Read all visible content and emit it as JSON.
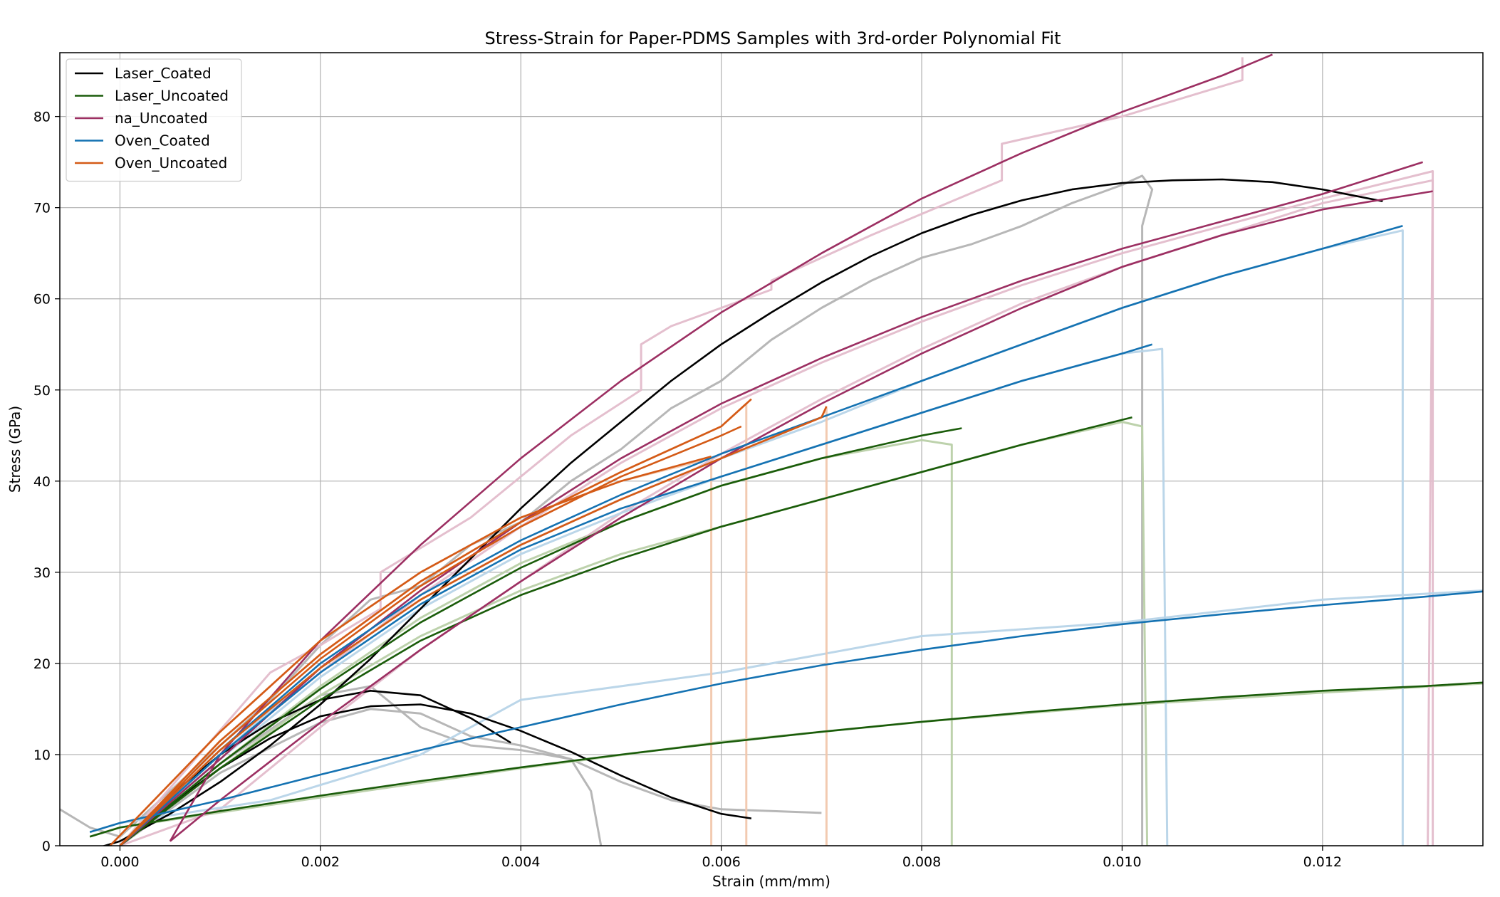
{
  "chart_data": {
    "type": "line",
    "title": "Stress-Strain for Paper-PDMS Samples with 3rd-order Polynomial Fit",
    "xlabel": "Strain (mm/mm)",
    "ylabel": "Stress (GPa)",
    "xlim": [
      -0.0006,
      0.0136
    ],
    "ylim": [
      0,
      87
    ],
    "x_ticks": [
      0.0,
      0.002,
      0.004,
      0.006,
      0.008,
      0.01,
      0.012
    ],
    "x_tick_labels": [
      "0.000",
      "0.002",
      "0.004",
      "0.006",
      "0.008",
      "0.010",
      "0.012"
    ],
    "y_ticks": [
      0,
      10,
      20,
      30,
      40,
      50,
      60,
      70,
      80
    ],
    "y_tick_labels": [
      "0",
      "10",
      "20",
      "30",
      "40",
      "50",
      "60",
      "70",
      "80"
    ],
    "grid": true,
    "legend_position": "top-left",
    "colors": {
      "Laser_Coated": "#000000",
      "Laser_Uncoated": "#1a5c0a",
      "na_Uncoated": "#9c2f62",
      "Oven_Coated": "#1472b2",
      "Oven_Uncoated": "#d45a16",
      "raw_Laser_Coated": "#b3b3b3",
      "raw_Laser_Uncoated": "#b9d0a8",
      "raw_na_Uncoated": "#e3bccb",
      "raw_Oven_Coated": "#b7d4e8",
      "raw_Oven_Uncoated": "#f1c7ad"
    },
    "legend": [
      "Laser_Coated",
      "Laser_Uncoated",
      "na_Uncoated",
      "Oven_Coated",
      "Oven_Uncoated"
    ],
    "series": [
      {
        "group": "Laser_Coated",
        "x": [
          -0.0003,
          0.0,
          0.0005,
          0.001,
          0.0015,
          0.002,
          0.0025,
          0.003,
          0.0035,
          0.004,
          0.0045,
          0.005,
          0.0055,
          0.006,
          0.0065,
          0.007,
          0.0075,
          0.008,
          0.0085,
          0.009,
          0.0095,
          0.01,
          0.0105,
          0.011,
          0.0115,
          0.012,
          0.0126
        ],
        "y": [
          -0.5,
          0.5,
          3.5,
          7.0,
          11.0,
          15.5,
          20.5,
          26.0,
          31.5,
          37.0,
          42.0,
          46.5,
          51.0,
          55.0,
          58.5,
          61.8,
          64.7,
          67.2,
          69.2,
          70.8,
          72.0,
          72.7,
          73.0,
          73.1,
          72.8,
          72.0,
          70.7
        ]
      },
      {
        "group": "Laser_Coated",
        "x": [
          0.0,
          0.0005,
          0.001,
          0.0015,
          0.002,
          0.0025,
          0.003,
          0.0035,
          0.0039
        ],
        "y": [
          0.0,
          5.5,
          10.0,
          13.5,
          16.0,
          17.0,
          16.5,
          14.0,
          11.3
        ]
      },
      {
        "group": "Laser_Coated",
        "x": [
          0.0,
          0.0005,
          0.001,
          0.0015,
          0.002,
          0.0025,
          0.003,
          0.0035,
          0.004,
          0.0045,
          0.005,
          0.0055,
          0.006,
          0.0063
        ],
        "y": [
          0.0,
          4.5,
          8.5,
          11.8,
          14.2,
          15.3,
          15.5,
          14.5,
          12.6,
          10.3,
          7.7,
          5.3,
          3.5,
          3.0
        ]
      },
      {
        "group": "Laser_Uncoated",
        "x": [
          0.0,
          0.001,
          0.002,
          0.003,
          0.004,
          0.005,
          0.006,
          0.007,
          0.008,
          0.0084
        ],
        "y": [
          0.0,
          9.0,
          17.2,
          24.5,
          30.5,
          35.5,
          39.5,
          42.5,
          45.0,
          45.8
        ]
      },
      {
        "group": "Laser_Uncoated",
        "x": [
          0.0,
          0.001,
          0.002,
          0.003,
          0.004,
          0.005,
          0.006,
          0.007,
          0.008,
          0.009,
          0.0101
        ],
        "y": [
          0.0,
          8.5,
          16.0,
          22.5,
          27.5,
          31.5,
          35.0,
          38.0,
          41.0,
          44.0,
          47.0
        ]
      },
      {
        "group": "Laser_Uncoated",
        "x": [
          -0.0003,
          0.0,
          0.001,
          0.002,
          0.003,
          0.004,
          0.005,
          0.006,
          0.007,
          0.008,
          0.009,
          0.01,
          0.011,
          0.012,
          0.013,
          0.0136
        ],
        "y": [
          1.0,
          2.0,
          3.8,
          5.5,
          7.1,
          8.6,
          10.0,
          11.3,
          12.5,
          13.6,
          14.6,
          15.5,
          16.3,
          17.0,
          17.5,
          17.9
        ]
      },
      {
        "group": "na_Uncoated",
        "x": [
          0.0005,
          0.001,
          0.002,
          0.003,
          0.004,
          0.005,
          0.006,
          0.007,
          0.008,
          0.009,
          0.01,
          0.011,
          0.0115
        ],
        "y": [
          0.5,
          10.0,
          22.5,
          33.0,
          42.5,
          51.0,
          58.5,
          65.0,
          71.0,
          76.0,
          80.5,
          84.5,
          86.8
        ]
      },
      {
        "group": "na_Uncoated",
        "x": [
          0.0,
          0.001,
          0.002,
          0.003,
          0.004,
          0.005,
          0.006,
          0.007,
          0.008,
          0.009,
          0.01,
          0.011,
          0.012,
          0.013
        ],
        "y": [
          0.0,
          9.5,
          19.5,
          28.0,
          35.5,
          42.5,
          48.5,
          53.5,
          58.0,
          62.0,
          65.5,
          68.5,
          71.5,
          75.0
        ]
      },
      {
        "group": "na_Uncoated",
        "x": [
          0.0005,
          0.001,
          0.002,
          0.003,
          0.004,
          0.005,
          0.006,
          0.007,
          0.008,
          0.009,
          0.01,
          0.011,
          0.012,
          0.0131
        ],
        "y": [
          0.5,
          5.0,
          13.5,
          21.5,
          29.0,
          36.0,
          42.5,
          48.5,
          54.0,
          59.0,
          63.5,
          67.0,
          69.8,
          71.8
        ]
      },
      {
        "group": "Oven_Coated",
        "x": [
          0.0,
          0.001,
          0.002,
          0.003,
          0.004,
          0.005,
          0.006,
          0.007,
          0.008,
          0.009,
          0.01,
          0.011,
          0.012,
          0.0128
        ],
        "y": [
          0.0,
          10.5,
          20.0,
          27.5,
          33.5,
          38.5,
          43.0,
          47.0,
          51.0,
          55.0,
          59.0,
          62.5,
          65.5,
          68.0
        ]
      },
      {
        "group": "Oven_Coated",
        "x": [
          0.0,
          0.001,
          0.002,
          0.003,
          0.004,
          0.005,
          0.006,
          0.007,
          0.008,
          0.009,
          0.01,
          0.0103
        ],
        "y": [
          0.0,
          10.0,
          19.0,
          26.5,
          32.5,
          37.0,
          40.5,
          44.0,
          47.5,
          51.0,
          54.0,
          55.0
        ]
      },
      {
        "group": "Oven_Coated",
        "x": [
          -0.0003,
          0.0,
          0.001,
          0.002,
          0.003,
          0.004,
          0.005,
          0.006,
          0.007,
          0.008,
          0.009,
          0.01,
          0.011,
          0.012,
          0.013,
          0.0136
        ],
        "y": [
          1.5,
          2.5,
          5.0,
          7.8,
          10.5,
          13.0,
          15.5,
          17.8,
          19.8,
          21.5,
          23.0,
          24.3,
          25.4,
          26.4,
          27.3,
          27.9
        ]
      },
      {
        "group": "Oven_Uncoated",
        "x": [
          0.0,
          0.001,
          0.002,
          0.003,
          0.004,
          0.005,
          0.006,
          0.0063
        ],
        "y": [
          0.0,
          11.5,
          21.0,
          29.0,
          35.5,
          41.0,
          46.0,
          49.0
        ]
      },
      {
        "group": "Oven_Uncoated",
        "x": [
          0.0,
          0.001,
          0.002,
          0.003,
          0.004,
          0.005,
          0.006,
          0.007,
          0.00705
        ],
        "y": [
          0.0,
          10.5,
          19.5,
          27.0,
          33.0,
          38.0,
          42.5,
          47.0,
          48.2
        ]
      },
      {
        "group": "Oven_Uncoated",
        "x": [
          -0.0001,
          0.001,
          0.002,
          0.003,
          0.004,
          0.005,
          0.0059
        ],
        "y": [
          0.0,
          12.5,
          22.5,
          30.0,
          36.0,
          40.0,
          42.7
        ]
      },
      {
        "group": "Oven_Uncoated",
        "x": [
          0.0,
          0.001,
          0.002,
          0.003,
          0.004,
          0.005,
          0.006,
          0.0062
        ],
        "y": [
          0.0,
          11.0,
          20.5,
          28.5,
          35.0,
          40.5,
          45.0,
          46.0
        ]
      }
    ],
    "raw_series": [
      {
        "group": "raw_Laser_Coated",
        "x": [
          -0.0006,
          -0.0003,
          0.0,
          0.0005,
          0.001,
          0.0015,
          0.002,
          0.0025,
          0.003,
          0.0035,
          0.004,
          0.0045,
          0.005,
          0.0055,
          0.006,
          0.0065,
          0.007,
          0.0075,
          0.008,
          0.0085,
          0.009,
          0.0095,
          0.01,
          0.0102,
          0.0103,
          0.0102,
          0.0102
        ],
        "y": [
          4.0,
          2.0,
          1.0,
          6.0,
          11.0,
          16.0,
          22.0,
          27.0,
          28.5,
          33.0,
          35.5,
          40.0,
          43.5,
          48.0,
          51.0,
          55.5,
          59.0,
          62.0,
          64.5,
          66.0,
          68.0,
          70.5,
          72.5,
          73.5,
          72.0,
          68.0,
          0.0
        ]
      },
      {
        "group": "raw_Laser_Coated",
        "x": [
          0.0,
          0.001,
          0.002,
          0.0025,
          0.003,
          0.0035,
          0.004,
          0.0045,
          0.0047,
          0.0048
        ],
        "y": [
          0.0,
          9.0,
          16.5,
          17.5,
          13.0,
          11.0,
          10.5,
          9.5,
          6.0,
          0.0
        ]
      },
      {
        "group": "raw_Laser_Coated",
        "x": [
          0.0,
          0.001,
          0.002,
          0.0025,
          0.003,
          0.0035,
          0.004,
          0.0045,
          0.005,
          0.0055,
          0.006,
          0.0065,
          0.007
        ],
        "y": [
          0.0,
          8.0,
          13.5,
          15.0,
          14.5,
          12.0,
          11.0,
          9.5,
          7.0,
          5.0,
          4.0,
          3.8,
          3.6
        ]
      },
      {
        "group": "raw_Laser_Uncoated",
        "x": [
          0.0,
          0.001,
          0.002,
          0.003,
          0.004,
          0.005,
          0.006,
          0.007,
          0.008,
          0.0083,
          0.0083
        ],
        "y": [
          0.0,
          9.0,
          17.5,
          25.0,
          31.0,
          35.5,
          39.5,
          42.5,
          44.5,
          44.0,
          0.0
        ]
      },
      {
        "group": "raw_Laser_Uncoated",
        "x": [
          0.0,
          0.001,
          0.002,
          0.003,
          0.004,
          0.005,
          0.006,
          0.007,
          0.008,
          0.009,
          0.01,
          0.0102,
          0.01025
        ],
        "y": [
          0.0,
          8.5,
          16.5,
          23.0,
          28.0,
          32.0,
          35.0,
          38.0,
          41.0,
          44.0,
          46.5,
          46.0,
          0.0
        ]
      },
      {
        "group": "raw_Laser_Uncoated",
        "x": [
          -0.0003,
          0.0,
          0.002,
          0.004,
          0.006,
          0.008,
          0.01,
          0.012,
          0.0136
        ],
        "y": [
          1.0,
          2.0,
          5.3,
          8.5,
          11.4,
          13.6,
          15.4,
          16.8,
          17.8
        ]
      },
      {
        "group": "raw_na_Uncoated",
        "x": [
          0.0,
          0.0015,
          0.002,
          0.0026,
          0.0026,
          0.0035,
          0.0045,
          0.0052,
          0.0052,
          0.0055,
          0.0065,
          0.0065,
          0.0075,
          0.0088,
          0.0088,
          0.01,
          0.0112,
          0.0112
        ],
        "y": [
          0.0,
          19.0,
          22.0,
          26.0,
          30.0,
          36.0,
          45.0,
          50.0,
          55.0,
          57.0,
          61.0,
          62.0,
          67.0,
          73.0,
          77.0,
          80.0,
          84.0,
          86.5
        ]
      },
      {
        "group": "raw_na_Uncoated",
        "x": [
          0.0,
          0.001,
          0.002,
          0.003,
          0.004,
          0.005,
          0.006,
          0.007,
          0.008,
          0.009,
          0.01,
          0.011,
          0.012,
          0.0131,
          0.01305
        ],
        "y": [
          0.0,
          10.0,
          19.0,
          27.5,
          35.0,
          42.0,
          48.0,
          53.0,
          57.5,
          61.5,
          65.0,
          68.0,
          71.0,
          74.0,
          0.0
        ]
      },
      {
        "group": "raw_na_Uncoated",
        "x": [
          0.0,
          0.001,
          0.002,
          0.003,
          0.004,
          0.005,
          0.006,
          0.007,
          0.008,
          0.009,
          0.01,
          0.011,
          0.012,
          0.0131,
          0.0131
        ],
        "y": [
          0.0,
          4.0,
          13.0,
          21.5,
          29.0,
          36.5,
          43.0,
          49.0,
          54.5,
          59.5,
          63.5,
          67.0,
          70.5,
          73.0,
          0.0
        ]
      },
      {
        "group": "raw_Oven_Coated",
        "x": [
          0.0,
          0.001,
          0.002,
          0.003,
          0.004,
          0.005,
          0.006,
          0.007,
          0.008,
          0.009,
          0.01,
          0.011,
          0.012,
          0.0128,
          0.0128
        ],
        "y": [
          0.0,
          10.0,
          19.5,
          27.0,
          33.0,
          38.0,
          42.5,
          46.5,
          51.0,
          55.0,
          59.0,
          62.5,
          65.5,
          67.5,
          0.0
        ]
      },
      {
        "group": "raw_Oven_Coated",
        "x": [
          0.0,
          0.001,
          0.002,
          0.003,
          0.004,
          0.005,
          0.006,
          0.007,
          0.008,
          0.009,
          0.01,
          0.0104,
          0.01045
        ],
        "y": [
          0.0,
          9.5,
          18.5,
          26.0,
          32.0,
          36.5,
          40.5,
          44.0,
          47.5,
          51.0,
          54.0,
          54.5,
          0.0
        ]
      },
      {
        "group": "raw_Oven_Coated",
        "x": [
          -0.0003,
          0.0,
          0.0015,
          0.003,
          0.004,
          0.006,
          0.008,
          0.01,
          0.012,
          0.0136
        ],
        "y": [
          1.5,
          2.5,
          5.0,
          10.0,
          16.0,
          19.0,
          23.0,
          24.5,
          27.0,
          28.0
        ]
      },
      {
        "group": "raw_Oven_Uncoated",
        "x": [
          0.0,
          0.001,
          0.002,
          0.003,
          0.004,
          0.005,
          0.006,
          0.00625,
          0.00625
        ],
        "y": [
          0.0,
          11.5,
          21.0,
          29.0,
          35.5,
          41.0,
          46.0,
          48.5,
          0.0
        ]
      },
      {
        "group": "raw_Oven_Uncoated",
        "x": [
          0.0,
          0.001,
          0.002,
          0.003,
          0.004,
          0.005,
          0.006,
          0.007,
          0.00705,
          0.00705
        ],
        "y": [
          0.0,
          10.5,
          19.5,
          27.0,
          33.0,
          38.0,
          42.5,
          47.0,
          48.0,
          0.0
        ]
      },
      {
        "group": "raw_Oven_Uncoated",
        "x": [
          -0.0001,
          0.001,
          0.002,
          0.003,
          0.004,
          0.005,
          0.0059,
          0.0059
        ],
        "y": [
          0.0,
          12.5,
          22.5,
          30.0,
          36.0,
          40.0,
          42.5,
          0.0
        ]
      }
    ]
  }
}
